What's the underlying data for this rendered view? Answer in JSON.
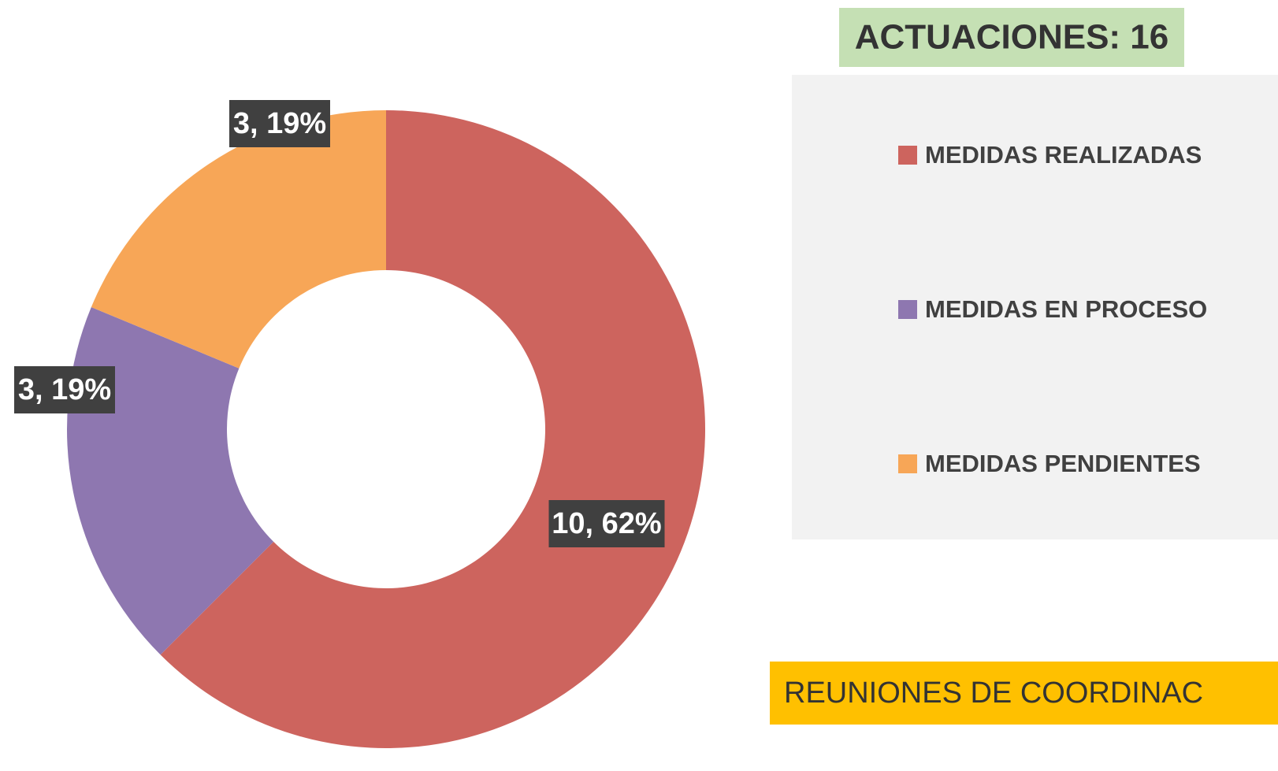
{
  "chart_data": {
    "type": "donut",
    "title": "ACTUACIONES: 16",
    "annotation": "REUNIONES DE COORDINAC",
    "categories": [
      "MEDIDAS REALIZADAS",
      "MEDIDAS EN PROCESO",
      "MEDIDAS PENDIENTES"
    ],
    "values": [
      10,
      3,
      3
    ],
    "value_labels": [
      "10, 62%",
      "3, 19%",
      "3, 19%"
    ],
    "colors": [
      "#cd645e",
      "#8e77b0",
      "#f7a657"
    ],
    "legend": "right"
  }
}
